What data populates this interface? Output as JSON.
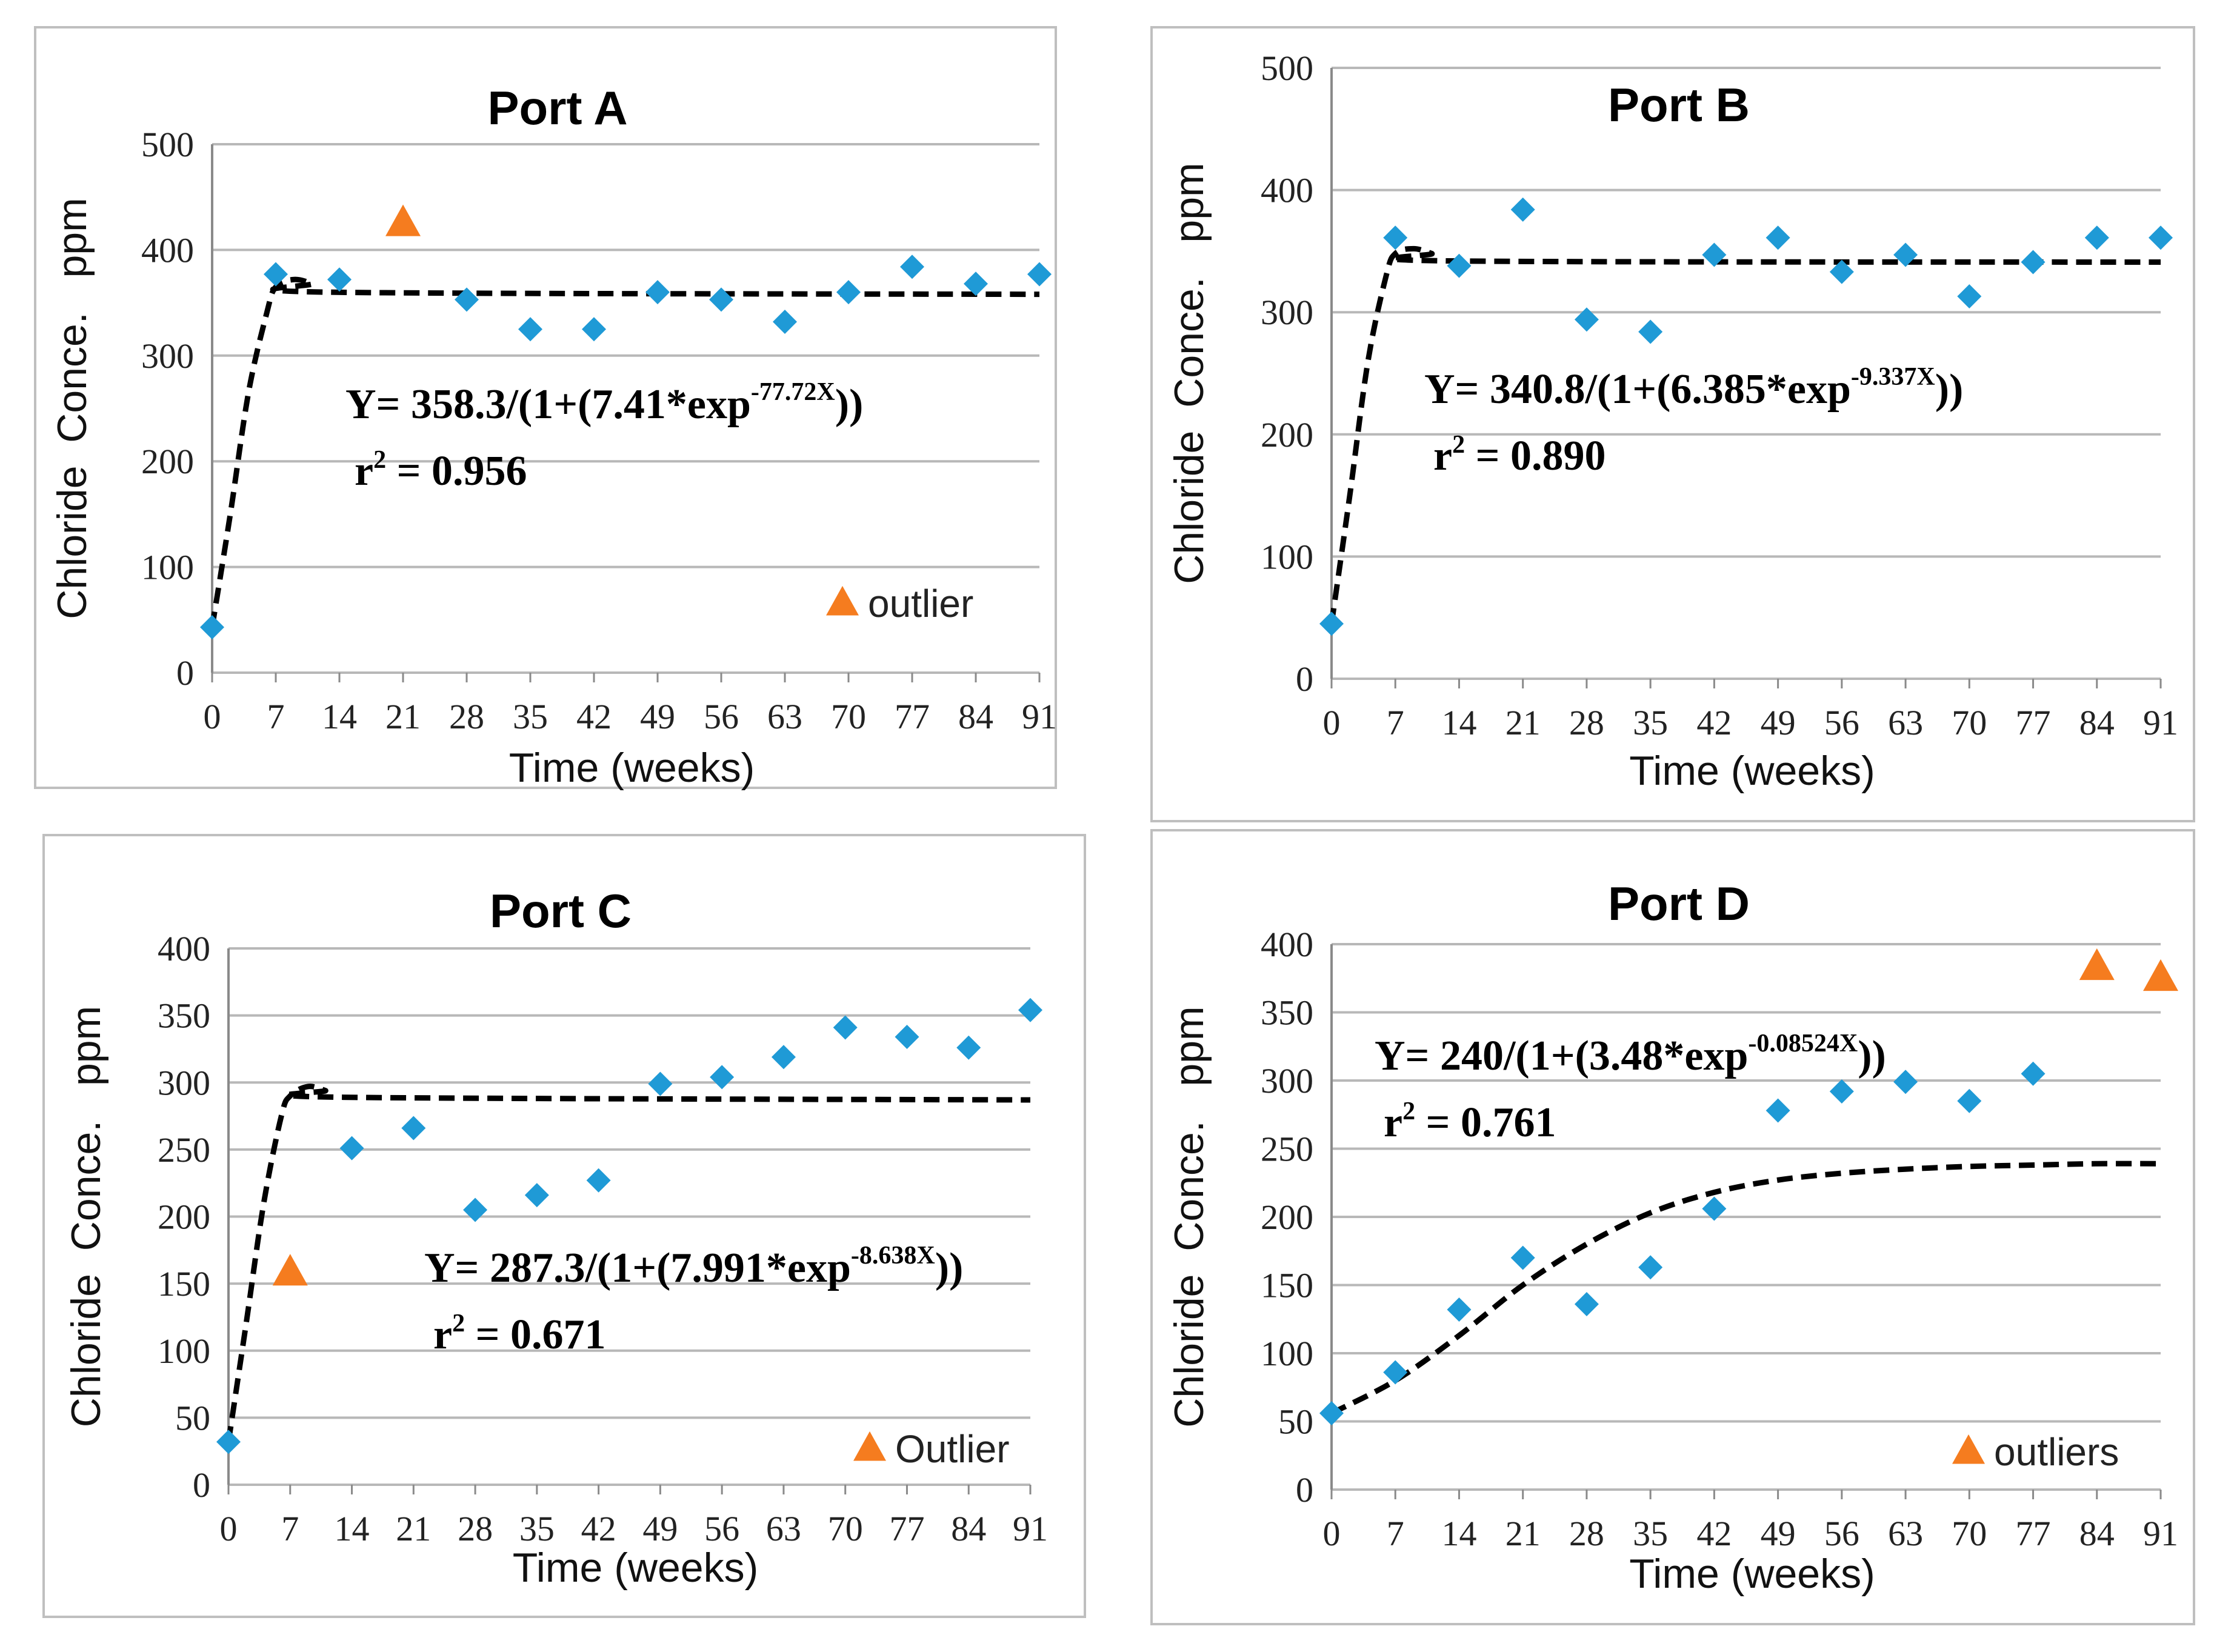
{
  "colors": {
    "point": "#1f9ad6",
    "outlier": "#f57c1f",
    "grid": "#b8b8b8",
    "fit": "#000000",
    "border": "#bfbfbf"
  },
  "chart_data": [
    {
      "type": "scatter",
      "title": "Port A",
      "xlabel": "Time (weeks)",
      "ylabel": "Chloride  Conce.   ppm",
      "x_ticks": [
        "0",
        "7",
        "14",
        "21",
        "28",
        "35",
        "42",
        "49",
        "56",
        "63",
        "70",
        "77",
        "84",
        "91"
      ],
      "ylim": [
        0,
        500
      ],
      "y_ticks": [
        "0",
        "100",
        "200",
        "300",
        "400",
        "500"
      ],
      "points": [
        [
          0,
          43
        ],
        [
          7,
          377
        ],
        [
          14,
          372
        ],
        [
          28,
          353
        ],
        [
          35,
          325
        ],
        [
          42,
          325
        ],
        [
          49,
          360
        ],
        [
          56,
          353
        ],
        [
          63,
          332
        ],
        [
          70,
          360
        ],
        [
          77,
          384
        ],
        [
          84,
          368
        ],
        [
          91,
          377
        ]
      ],
      "outliers": [
        [
          21,
          425
        ]
      ],
      "fit_curve": [
        [
          0,
          43
        ],
        [
          2,
          150
        ],
        [
          4,
          265
        ],
        [
          6,
          340
        ],
        [
          7,
          365
        ],
        [
          9,
          372
        ],
        [
          11,
          368
        ],
        [
          13,
          360
        ],
        [
          91,
          358
        ]
      ],
      "equation_main": "Y= 358.3/(1+(7.41*exp",
      "equation_exp": "-77.72X",
      "equation_close": "))",
      "r2_prefix": "r",
      "r2_sup": "2",
      "r2_value": " = 0.956",
      "legend_label": "outlier"
    },
    {
      "type": "scatter",
      "title": "Port B",
      "xlabel": "Time (weeks)",
      "ylabel": "Chloride  Conce.   ppm",
      "x_ticks": [
        "0",
        "7",
        "14",
        "21",
        "28",
        "35",
        "42",
        "49",
        "56",
        "63",
        "70",
        "77",
        "84",
        "91"
      ],
      "ylim": [
        0,
        500
      ],
      "y_ticks": [
        "0",
        "100",
        "200",
        "300",
        "400",
        "500"
      ],
      "points": [
        [
          0,
          45
        ],
        [
          7,
          361
        ],
        [
          14,
          338
        ],
        [
          21,
          384
        ],
        [
          28,
          294
        ],
        [
          35,
          284
        ],
        [
          42,
          347
        ],
        [
          49,
          361
        ],
        [
          56,
          333
        ],
        [
          63,
          347
        ],
        [
          70,
          313
        ],
        [
          77,
          341
        ],
        [
          84,
          361
        ],
        [
          91,
          361
        ]
      ],
      "outliers": [],
      "fit_curve": [
        [
          0,
          45
        ],
        [
          2,
          150
        ],
        [
          4,
          260
        ],
        [
          6,
          330
        ],
        [
          7,
          348
        ],
        [
          9,
          352
        ],
        [
          11,
          348
        ],
        [
          13,
          342
        ],
        [
          91,
          341
        ]
      ],
      "equation_main": "Y= 340.8/(1+(6.385*exp",
      "equation_exp": "-9.337X",
      "equation_close": "))",
      "r2_prefix": "r",
      "r2_sup": "2",
      "r2_value": " = 0.890",
      "legend_label": ""
    },
    {
      "type": "scatter",
      "title": "Port C",
      "xlabel": "Time (weeks)",
      "ylabel": "Chloride  Conce.   ppm",
      "x_ticks": [
        "0",
        "7",
        "14",
        "21",
        "28",
        "35",
        "42",
        "49",
        "56",
        "63",
        "70",
        "77",
        "84",
        "91"
      ],
      "ylim": [
        0,
        400
      ],
      "y_ticks": [
        "0",
        "50",
        "100",
        "150",
        "200",
        "250",
        "300",
        "350",
        "400"
      ],
      "points": [
        [
          0,
          32
        ],
        [
          14,
          251
        ],
        [
          21,
          266
        ],
        [
          28,
          205
        ],
        [
          35,
          216
        ],
        [
          42,
          227
        ],
        [
          49,
          299
        ],
        [
          56,
          304
        ],
        [
          63,
          319
        ],
        [
          70,
          341
        ],
        [
          77,
          334
        ],
        [
          84,
          326
        ],
        [
          91,
          354
        ]
      ],
      "outliers": [
        [
          7,
          158
        ]
      ],
      "fit_curve": [
        [
          0,
          32
        ],
        [
          2,
          120
        ],
        [
          4,
          210
        ],
        [
          6,
          275
        ],
        [
          7,
          290
        ],
        [
          9,
          297
        ],
        [
          11,
          294
        ],
        [
          13,
          289
        ],
        [
          91,
          287
        ]
      ],
      "equation_main": "Y= 287.3/(1+(7.991*exp",
      "equation_exp": "-8.638X",
      "equation_close": "))",
      "r2_prefix": "r",
      "r2_sup": "2",
      "r2_value": " = 0.671",
      "legend_label": "Outlier"
    },
    {
      "type": "scatter",
      "title": "Port D",
      "xlabel": "Time (weeks)",
      "ylabel": "Chloride  Conce.   ppm",
      "x_ticks": [
        "0",
        "7",
        "14",
        "21",
        "28",
        "35",
        "42",
        "49",
        "56",
        "63",
        "70",
        "77",
        "84",
        "91"
      ],
      "ylim": [
        0,
        400
      ],
      "y_ticks": [
        "0",
        "50",
        "100",
        "150",
        "200",
        "250",
        "300",
        "350",
        "400"
      ],
      "points": [
        [
          0,
          56
        ],
        [
          7,
          86
        ],
        [
          14,
          132
        ],
        [
          21,
          170
        ],
        [
          28,
          136
        ],
        [
          35,
          163
        ],
        [
          42,
          206
        ],
        [
          49,
          278
        ],
        [
          56,
          292
        ],
        [
          63,
          299
        ],
        [
          70,
          285
        ],
        [
          77,
          305
        ]
      ],
      "outliers": [
        [
          84,
          383
        ],
        [
          91,
          375
        ]
      ],
      "fit_curve": [
        [
          0,
          56
        ],
        [
          7,
          80
        ],
        [
          14,
          113
        ],
        [
          21,
          150
        ],
        [
          28,
          180
        ],
        [
          35,
          203
        ],
        [
          42,
          218
        ],
        [
          49,
          227
        ],
        [
          56,
          232
        ],
        [
          63,
          235
        ],
        [
          70,
          237
        ],
        [
          77,
          238
        ],
        [
          84,
          239
        ],
        [
          91,
          239
        ]
      ],
      "equation_main": "Y= 240/(1+(3.48*exp",
      "equation_exp": "-0.08524X",
      "equation_close": "))",
      "r2_prefix": "r",
      "r2_sup": "2",
      "r2_value": " = 0.761",
      "legend_label": "outliers"
    }
  ]
}
